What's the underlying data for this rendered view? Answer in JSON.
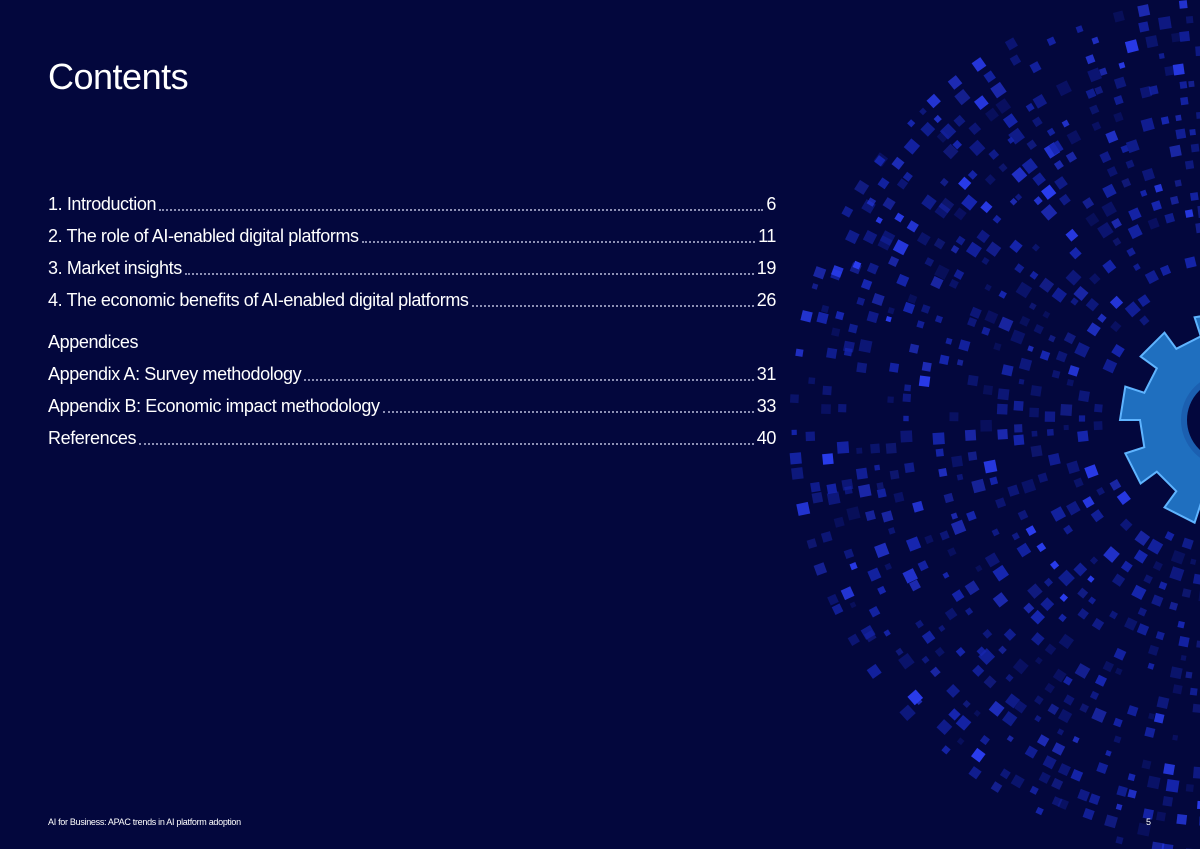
{
  "title": "Contents",
  "toc": [
    {
      "label": "1. Introduction",
      "page": "6"
    },
    {
      "label": "2. The role of AI-enabled digital platforms",
      "page": "11"
    },
    {
      "label": "3. Market insights",
      "page": "19"
    },
    {
      "label": "4. The economic benefits of AI-enabled digital platforms",
      "page": "26"
    }
  ],
  "appendices": {
    "heading": "Appendices",
    "items": [
      {
        "label": "Appendix A: Survey methodology",
        "page": "31"
      },
      {
        "label": "Appendix B: Economic impact methodology",
        "page": "33"
      },
      {
        "label": "References",
        "page": "40"
      }
    ]
  },
  "footer": {
    "document_title": "AI for Business: APAC trends in AI platform adoption",
    "page_number": "5"
  },
  "colors": {
    "background": "#03073d",
    "pixel_blue": "#1c2fd8",
    "gear_blue": "#1f6fbf"
  },
  "decoration": {
    "graphic_icon": "gear-icon"
  }
}
